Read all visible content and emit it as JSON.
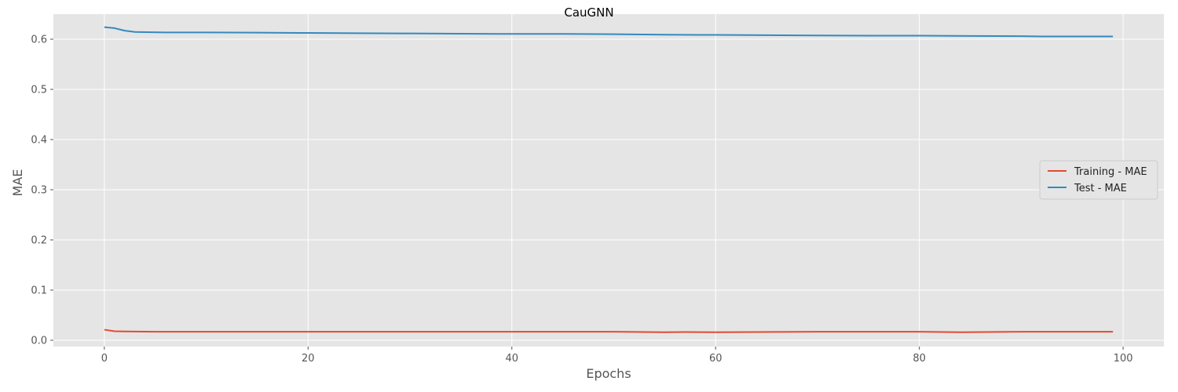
{
  "chart_data": {
    "type": "line",
    "title": "CauGNN",
    "xlabel": "Epochs",
    "ylabel": "MAE",
    "xlim": [
      -5,
      104
    ],
    "ylim": [
      -0.0125,
      0.65
    ],
    "xticks": [
      0,
      20,
      40,
      60,
      80,
      100
    ],
    "xtick_labels": [
      "0",
      "20",
      "40",
      "60",
      "80",
      "100"
    ],
    "yticks": [
      0.0,
      0.1,
      0.2,
      0.3,
      0.4,
      0.5,
      0.6
    ],
    "ytick_labels": [
      "0.0",
      "0.1",
      "0.2",
      "0.3",
      "0.4",
      "0.5",
      "0.6"
    ],
    "grid": true,
    "legend_position": "center-right",
    "colors": {
      "background": "#e5e5e5",
      "grid": "#ffffff"
    },
    "series": [
      {
        "name": "Training - MAE",
        "color": "#e24a33",
        "x": [
          0,
          1,
          2,
          5,
          10,
          20,
          30,
          40,
          50,
          55,
          57,
          60,
          70,
          80,
          84,
          90,
          99
        ],
        "y": [
          0.021,
          0.018,
          0.0175,
          0.017,
          0.017,
          0.017,
          0.017,
          0.017,
          0.017,
          0.016,
          0.0165,
          0.016,
          0.017,
          0.017,
          0.016,
          0.017,
          0.017
        ]
      },
      {
        "name": "Test - MAE",
        "color": "#348abd",
        "x": [
          0,
          1,
          2,
          3,
          4,
          6,
          8,
          10,
          15,
          20,
          25,
          30,
          35,
          40,
          45,
          50,
          55,
          60,
          65,
          70,
          75,
          80,
          85,
          90,
          92,
          95,
          99
        ],
        "y": [
          0.624,
          0.622,
          0.617,
          0.6145,
          0.614,
          0.6135,
          0.6135,
          0.6135,
          0.613,
          0.6125,
          0.612,
          0.6115,
          0.611,
          0.6105,
          0.6105,
          0.61,
          0.609,
          0.6085,
          0.608,
          0.6075,
          0.607,
          0.607,
          0.6065,
          0.606,
          0.6055,
          0.6055,
          0.6055
        ]
      }
    ]
  }
}
